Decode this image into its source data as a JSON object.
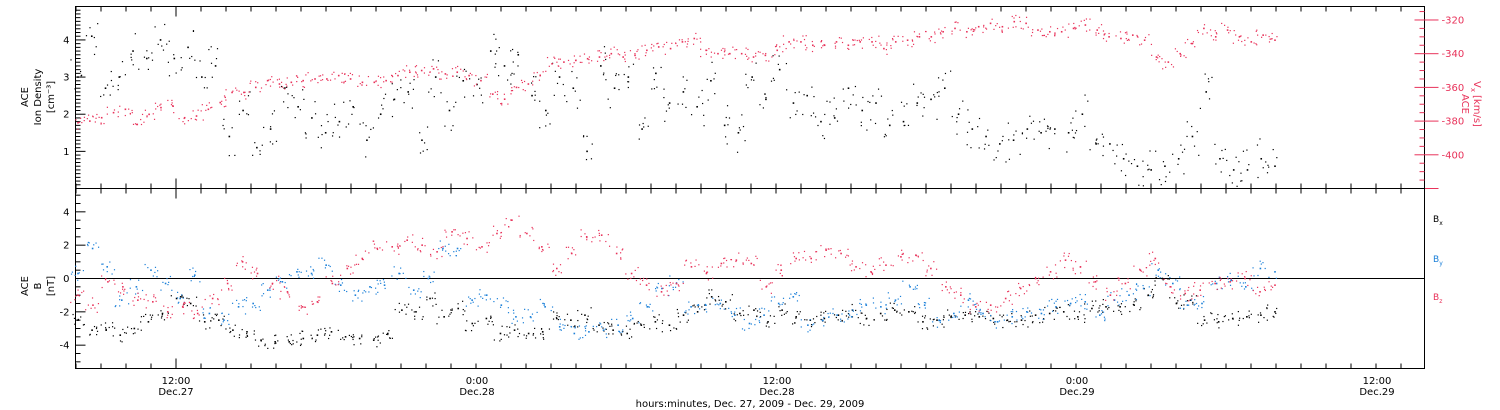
{
  "colors": {
    "black": "#000000",
    "red": "#e8325a",
    "blue": "#1a7fd8"
  },
  "chart_data": [
    {
      "type": "scatter",
      "panel": "top",
      "ylabel_line1": "ACE",
      "ylabel_line2": "Ion Density",
      "ylabel_units": "[cm⁻³]",
      "y2label_line1": "ACE",
      "y2label_line2": "V",
      "y2label_sub": "x",
      "y2label_units": "[km/s]",
      "ylim": [
        0,
        4.9
      ],
      "y2lim": [
        -420,
        -312
      ],
      "yticks": [
        "1",
        "2",
        "3",
        "4"
      ],
      "y2ticks": [
        "-320",
        "-340",
        "-360",
        "-380",
        "-400"
      ],
      "x_hours_range": [
        0,
        24
      ],
      "series": [
        {
          "color": "#000000",
          "axis": "left",
          "values": [
            3.0,
            4.1,
            2.7,
            3.0,
            3.7,
            3.5,
            4.0,
            3.5,
            3.8,
            3.0,
            3.3,
            1.4,
            2.1,
            1.1,
            1.6,
            2.7,
            2.2,
            1.9,
            1.5,
            1.8,
            2.2,
            1.3,
            2.0,
            2.4,
            2.6,
            1.3,
            3.0,
            2.1,
            2.9,
            2.8,
            3.7,
            3.3,
            3.6,
            2.5,
            2.1,
            3.0,
            2.7,
            1.0,
            3.3,
            2.7,
            3.0,
            1.6,
            3.1,
            2.3,
            2.6,
            2.2,
            2.9,
            1.7,
            1.5,
            3.0,
            2.4,
            3.2,
            2.3,
            2.5,
            1.8,
            1.9,
            2.7,
            2.1,
            2.3,
            1.7,
            1.8,
            2.3,
            2.4,
            2.7,
            2.0,
            1.6,
            1.4,
            1.2,
            1.3,
            1.6,
            1.5,
            1.6,
            1.5,
            2.0,
            1.2,
            1.2,
            0.8,
            0.6,
            0.5,
            0.6,
            0.8,
            1.4,
            2.6,
            0.8,
            0.5,
            0.5,
            0.8,
            0.6
          ]
        },
        {
          "color": "#e8325a",
          "axis": "right",
          "values": [
            -381,
            -380,
            -378,
            -375,
            -373,
            -382,
            -376,
            -372,
            -371,
            -378,
            -377,
            -373,
            -369,
            -363,
            -363,
            -360,
            -356,
            -358,
            -357,
            -356,
            -355,
            -355,
            -353,
            -355,
            -357,
            -357,
            -356,
            -353,
            -351,
            -350,
            -349,
            -352,
            -351,
            -353,
            -356,
            -364,
            -367,
            -360,
            -358,
            -353,
            -346,
            -345,
            -344,
            -343,
            -342,
            -340,
            -342,
            -341,
            -338,
            -336,
            -337,
            -333,
            -331,
            -338,
            -340,
            -340,
            -340,
            -342,
            -341,
            -338,
            -333,
            -333,
            -335,
            -335,
            -333,
            -335,
            -333,
            -333,
            -337,
            -333,
            -332,
            -330,
            -330,
            -327,
            -325,
            -327,
            -324,
            -322,
            -324,
            -321,
            -322,
            -326,
            -327,
            -327,
            -325,
            -323,
            -326,
            -330,
            -331,
            -329,
            -332,
            -342,
            -345,
            -340,
            -334,
            -325,
            -330,
            -326,
            -330,
            -333,
            -329,
            -332
          ]
        }
      ]
    },
    {
      "type": "scatter",
      "panel": "bottom",
      "ylabel_line1": "ACE",
      "ylabel_line2": "B",
      "ylabel_units": "[nT]",
      "ylim": [
        -5.4,
        5.4
      ],
      "yticks": [
        "4",
        "2",
        "0",
        "-2",
        "-4"
      ],
      "zero_line": true,
      "legend": [
        {
          "name": "B",
          "sub": "x",
          "color": "#000000"
        },
        {
          "name": "B",
          "sub": "y",
          "color": "#1a7fd8"
        },
        {
          "name": "B",
          "sub": "z",
          "color": "#e8325a"
        }
      ],
      "series": [
        {
          "name": "Bx",
          "color": "#000000",
          "values": [
            -2.5,
            -3.1,
            -3.1,
            -3.4,
            -3.0,
            -2.6,
            -2.1,
            -1.2,
            -1.5,
            -2.6,
            -2.5,
            -3.1,
            -3.2,
            -3.7,
            -3.8,
            -3.8,
            -3.6,
            -3.4,
            -3.2,
            -3.5,
            -3.6,
            -3.7,
            -3.3,
            -1.9,
            -2.0,
            -1.2,
            -2.3,
            -1.8,
            -2.7,
            -2.4,
            -3.3,
            -3.1,
            -3.3,
            -3.2,
            -2.4,
            -2.5,
            -2.2,
            -2.8,
            -3.1,
            -3.3,
            -2.8,
            -2.6,
            -2.8,
            -2.2,
            -2.0,
            -1.1,
            -1.4,
            -2.1,
            -1.9,
            -2.6,
            -1.9,
            -2.3,
            -2.5,
            -2.4,
            -2.2,
            -1.9,
            -2.4,
            -2.1,
            -1.9,
            -2.0,
            -2.6,
            -2.5,
            -2.3,
            -2.2,
            -2.3,
            -2.4,
            -2.5,
            -2.5,
            -2.2,
            -2.1,
            -2.0,
            -2.3,
            -1.8,
            -1.7,
            -1.7,
            -1.6,
            -1.0,
            0.0,
            -1.5,
            -1.3,
            -2.5,
            -2.6,
            -2.4,
            -2.3,
            -2.2,
            -2.0
          ]
        },
        {
          "name": "By",
          "color": "#1a7fd8",
          "values": [
            0.3,
            1.8,
            0.7,
            -1.3,
            -0.5,
            0.5,
            -0.3,
            -1.2,
            0.2,
            -2.1,
            -2.5,
            -1.7,
            -1.5,
            -0.7,
            -0.2,
            0.4,
            0.3,
            0.8,
            -0.4,
            -1.0,
            -0.5,
            -0.4,
            0.3,
            -0.7,
            0.0,
            1.8,
            1.8,
            -1.3,
            -1.0,
            -1.6,
            -2.3,
            -2.3,
            -1.7,
            -2.9,
            -3.3,
            -3.2,
            -3.1,
            -2.8,
            -2.4,
            -1.7,
            -0.6,
            -0.3,
            -1.7,
            -1.6,
            -1.5,
            -2.2,
            -2.7,
            -2.2,
            -1.5,
            -1.1,
            -2.8,
            -2.5,
            -2.2,
            -2.3,
            -1.6,
            -1.7,
            -1.3,
            -0.5,
            -1.6,
            -2.5,
            -2.1,
            -1.3,
            -2.1,
            -2.6,
            -2.3,
            -2.0,
            -2.1,
            -1.7,
            -1.5,
            -1.4,
            -2.2,
            -1.3,
            -1.0,
            -0.6,
            0.5,
            -0.3,
            -1.6,
            -1.5,
            -0.3,
            -0.1,
            -0.5,
            0.6,
            0.4
          ]
        },
        {
          "name": "Bz",
          "color": "#e8325a",
          "values": [
            -1.0,
            -1.6,
            -0.2,
            -0.5,
            -1.3,
            -1.4,
            -2.0,
            -1.7,
            -2.1,
            -1.2,
            -0.3,
            1.0,
            0.3,
            -0.3,
            -0.8,
            -1.7,
            -1.4,
            -0.3,
            0.6,
            1.2,
            1.8,
            1.9,
            2.3,
            2.0,
            1.6,
            2.8,
            2.4,
            1.9,
            2.7,
            3.5,
            2.7,
            1.9,
            0.6,
            1.5,
            2.5,
            2.6,
            1.5,
            0.3,
            -0.4,
            -0.8,
            -0.3,
            0.7,
            0.3,
            0.9,
            1.1,
            0.9,
            -0.5,
            0.5,
            1.2,
            1.2,
            1.7,
            1.5,
            0.7,
            0.4,
            0.8,
            1.3,
            1.4,
            0.6,
            -0.5,
            -1.0,
            -1.7,
            -1.6,
            -1.2,
            -0.6,
            0.0,
            0.4,
            1.1,
            0.7,
            -0.2,
            -1.0,
            -0.3,
            0.5,
            1.2,
            -0.5,
            -0.9,
            -0.7,
            -0.3,
            -0.2,
            0.0,
            -0.8,
            -0.4
          ]
        }
      ]
    }
  ],
  "xaxis": {
    "ticks": [
      {
        "time": "12:00",
        "date": "Dec.27"
      },
      {
        "time": "0:00",
        "date": "Dec.28"
      },
      {
        "time": "12:00",
        "date": "Dec.28"
      },
      {
        "time": "0:00",
        "date": "Dec.29"
      },
      {
        "time": "12:00",
        "date": "Dec.29"
      }
    ],
    "title": "hours:minutes, Dec. 27, 2009 - Dec. 29, 2009"
  }
}
